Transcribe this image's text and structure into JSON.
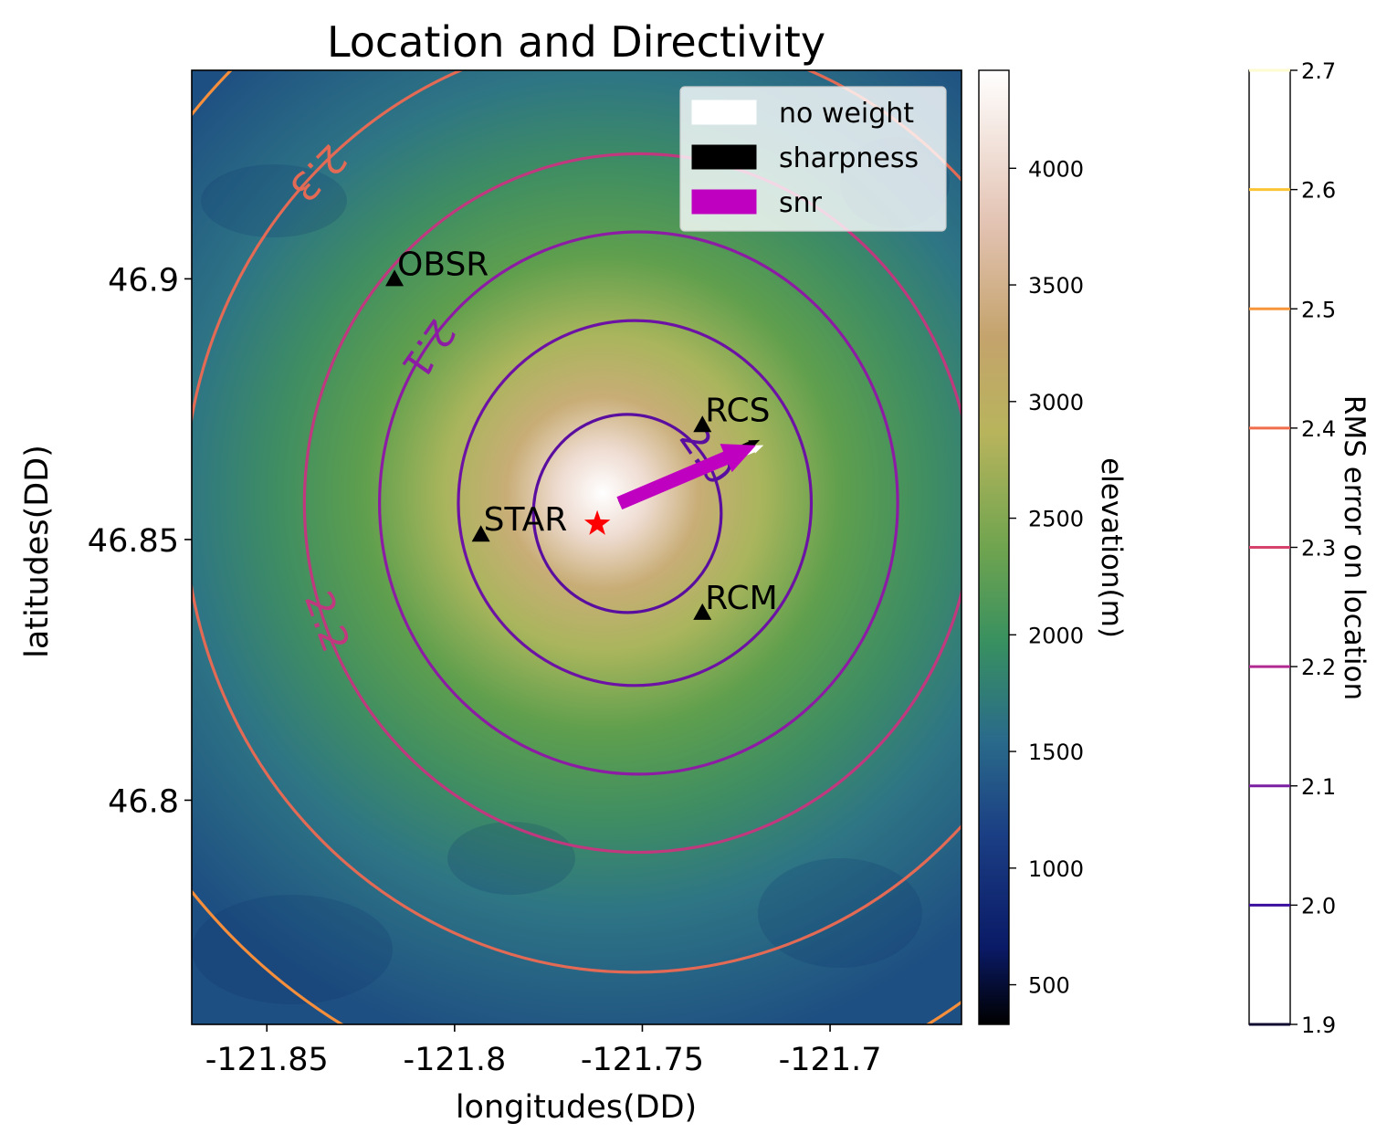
{
  "chart_data": {
    "type": "contour",
    "title": "Location and Directivity",
    "xlabel": "longitudes(DD)",
    "ylabel": "latitudes(DD)",
    "xlim": [
      -121.87,
      -121.665
    ],
    "ylim": [
      46.757,
      46.94
    ],
    "xticks": [
      -121.85,
      -121.8,
      -121.75,
      -121.7
    ],
    "xtick_labels": [
      "-121.85",
      "-121.8",
      "-121.75",
      "-121.7"
    ],
    "yticks": [
      46.8,
      46.85,
      46.9
    ],
    "ytick_labels": [
      "46.8",
      "46.85",
      "46.9"
    ],
    "background": "elevation map",
    "elevation_colorbar": {
      "label": "elevation(m)",
      "range": [
        330,
        4420
      ],
      "ticks": [
        500,
        1000,
        1500,
        2000,
        2500,
        3000,
        3500,
        4000
      ],
      "tick_labels": [
        "500",
        "1000",
        "1500",
        "2000",
        "2500",
        "3000",
        "3500",
        "4000"
      ],
      "colormap": [
        "#000000",
        "#0d1a6b",
        "#1a3d80",
        "#2b6a8a",
        "#3a9060",
        "#7aaa50",
        "#c3b05a",
        "#c9a577",
        "#e9cdbd",
        "#fbf7f5",
        "#ffffff"
      ]
    },
    "rms_colorbar": {
      "label": "RMS error on location",
      "range": [
        1.9,
        2.7
      ],
      "ticks": [
        1.9,
        2.0,
        2.1,
        2.2,
        2.3,
        2.4,
        2.5,
        2.6,
        2.7
      ],
      "tick_labels": [
        "1.9",
        "2.0",
        "2.1",
        "2.2",
        "2.3",
        "2.4",
        "2.5",
        "2.6",
        "2.7"
      ],
      "line_colors": [
        "#110a30",
        "#3b0f9e",
        "#7b1fa2",
        "#b02a90",
        "#d5436d",
        "#ef6d4a",
        "#f6953a",
        "#fbc436",
        "#fcfcd0"
      ]
    },
    "contours": [
      {
        "level": 2.0,
        "label": "2.0",
        "color": "#5a0ea0",
        "center": [
          -121.754,
          46.855
        ],
        "radius_lon": 0.025,
        "radius_lat": 0.019
      },
      {
        "level": 2.05,
        "label": "",
        "color": "#6c12a4",
        "center": [
          -121.752,
          46.857
        ],
        "radius_lon": 0.047,
        "radius_lat": 0.035
      },
      {
        "level": 2.1,
        "label": "2.1",
        "color": "#8d1ca4",
        "center": [
          -121.751,
          46.857
        ],
        "radius_lon": 0.069,
        "radius_lat": 0.052
      },
      {
        "level": 2.2,
        "label": "2.2",
        "color": "#c0397f",
        "center": [
          -121.751,
          46.857
        ],
        "radius_lon": 0.089,
        "radius_lat": 0.067
      },
      {
        "level": 2.3,
        "label": "2.3",
        "color": "#e36a55",
        "center": [
          -121.752,
          46.857
        ],
        "radius_lon": 0.12,
        "radius_lat": 0.09
      },
      {
        "level": 2.4,
        "label": "",
        "color": "#f58f3c",
        "center": [
          -121.752,
          46.857
        ],
        "radius_lon": 0.154,
        "radius_lat": 0.116
      }
    ],
    "stations": [
      {
        "name": "OBSR",
        "lon": -121.816,
        "lat": 46.9
      },
      {
        "name": "RCS",
        "lon": -121.734,
        "lat": 46.872
      },
      {
        "name": "STAR",
        "lon": -121.793,
        "lat": 46.851
      },
      {
        "name": "RCM",
        "lon": -121.734,
        "lat": 46.836
      }
    ],
    "location": {
      "lon": -121.762,
      "lat": 46.853,
      "marker": "star",
      "color": "#ff0000"
    },
    "arrows": [
      {
        "name": "no weight",
        "color": "#ffffff",
        "from": [
          -121.756,
          46.857
        ],
        "to": [
          -121.718,
          46.868
        ]
      },
      {
        "name": "sharpness",
        "color": "#000000",
        "from": [
          -121.756,
          46.857
        ],
        "to": [
          -121.719,
          46.869
        ]
      },
      {
        "name": "snr",
        "color": "#c000c0",
        "from": [
          -121.756,
          46.857
        ],
        "to": [
          -121.72,
          46.868
        ]
      }
    ],
    "legend": {
      "position": "upper-right",
      "entries": [
        {
          "label": "no weight",
          "color": "#ffffff"
        },
        {
          "label": "sharpness",
          "color": "#000000"
        },
        {
          "label": "snr",
          "color": "#c000c0"
        }
      ]
    },
    "grid": false
  }
}
